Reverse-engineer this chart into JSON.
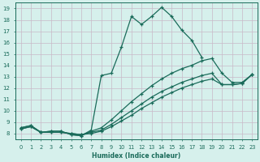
{
  "xlabel": "Humidex (Indice chaleur)",
  "bg_color": "#d6f0ec",
  "grid_color": "#c8b8c8",
  "line_color": "#1a6b5a",
  "xlim": [
    -0.5,
    23.5
  ],
  "ylim": [
    7.5,
    19.5
  ],
  "yticks": [
    8,
    9,
    10,
    11,
    12,
    13,
    14,
    15,
    16,
    17,
    18,
    19
  ],
  "xticks": [
    0,
    1,
    2,
    3,
    4,
    5,
    6,
    7,
    8,
    9,
    10,
    11,
    12,
    13,
    14,
    15,
    16,
    17,
    18,
    19,
    20,
    21,
    22,
    23
  ],
  "line1_x": [
    0,
    1,
    2,
    3,
    4,
    5,
    6,
    7,
    8,
    9,
    10,
    11,
    12,
    13,
    14,
    15,
    16,
    17,
    18
  ],
  "line1_y": [
    8.5,
    8.7,
    8.1,
    8.2,
    8.2,
    7.9,
    7.8,
    8.3,
    13.1,
    13.3,
    15.6,
    18.3,
    17.6,
    18.3,
    19.1,
    18.3,
    17.1,
    16.2,
    14.7
  ],
  "line2_x": [
    0,
    1,
    2,
    3,
    4,
    5,
    6,
    7,
    8,
    9,
    10,
    11,
    12,
    13,
    14,
    15,
    16,
    17,
    18,
    19,
    20,
    21,
    22,
    23
  ],
  "line2_y": [
    8.5,
    8.7,
    8.1,
    8.2,
    8.2,
    7.9,
    7.8,
    8.2,
    8.5,
    9.2,
    10.0,
    10.8,
    11.5,
    12.2,
    12.8,
    13.3,
    13.7,
    14.0,
    14.4,
    14.6,
    13.3,
    12.5,
    12.5,
    13.2
  ],
  "line3_x": [
    0,
    1,
    2,
    3,
    4,
    5,
    6,
    7,
    8,
    9,
    10,
    11,
    12,
    13,
    14,
    15,
    16,
    17,
    18,
    19,
    20,
    21,
    22,
    23
  ],
  "line3_y": [
    8.4,
    8.6,
    8.1,
    8.1,
    8.1,
    8.0,
    7.9,
    8.1,
    8.3,
    8.8,
    9.4,
    10.0,
    10.6,
    11.2,
    11.7,
    12.1,
    12.5,
    12.8,
    13.1,
    13.3,
    12.3,
    12.3,
    12.4,
    13.2
  ],
  "line4_x": [
    0,
    1,
    2,
    3,
    4,
    5,
    6,
    7,
    8,
    9,
    10,
    11,
    12,
    13,
    14,
    15,
    16,
    17,
    18,
    19,
    20,
    21,
    22,
    23
  ],
  "line4_y": [
    8.4,
    8.6,
    8.1,
    8.1,
    8.1,
    8.0,
    7.9,
    8.0,
    8.2,
    8.6,
    9.1,
    9.6,
    10.2,
    10.7,
    11.2,
    11.6,
    12.0,
    12.3,
    12.6,
    12.8,
    12.3,
    12.3,
    12.4,
    13.2
  ]
}
